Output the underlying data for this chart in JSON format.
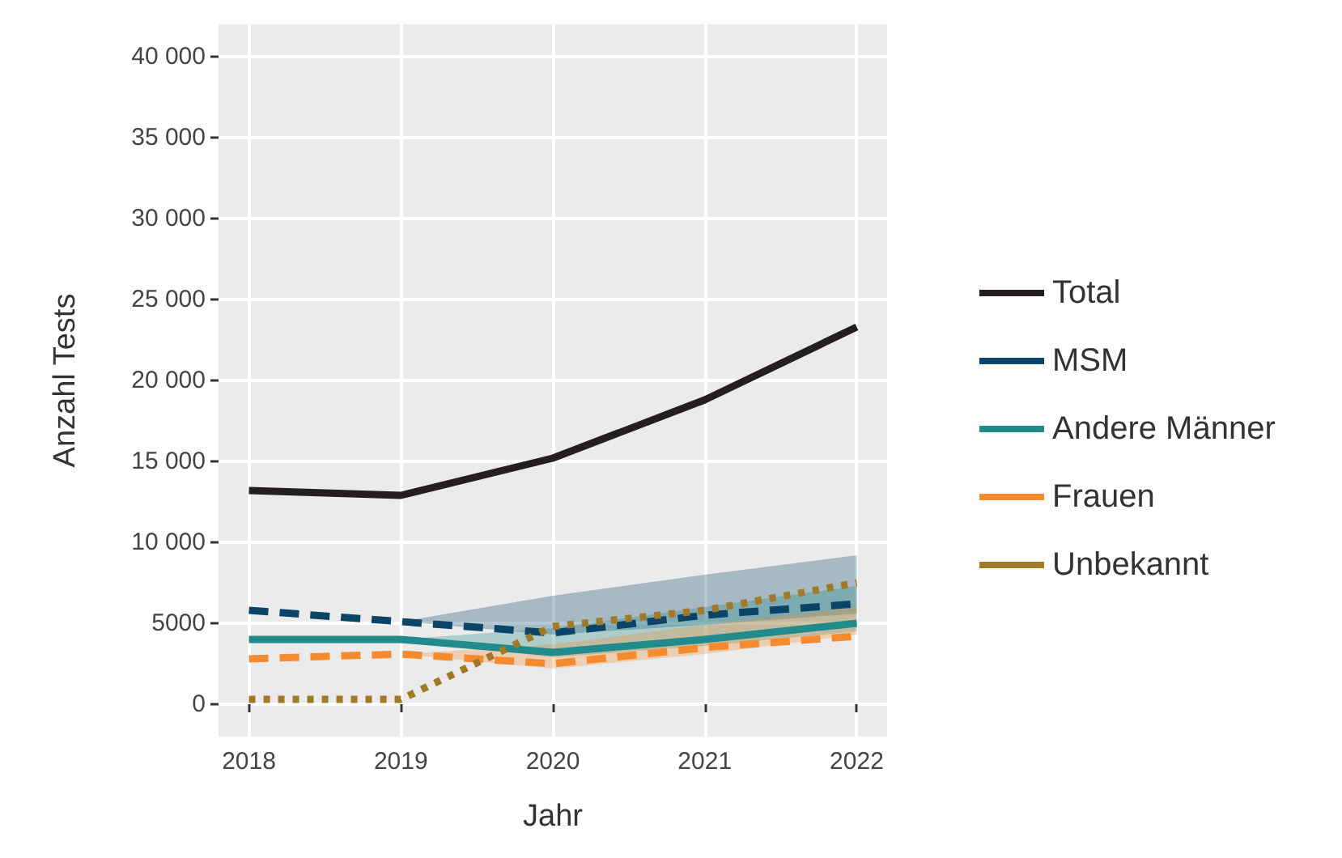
{
  "chart_data": {
    "type": "line",
    "xlabel": "Jahr",
    "ylabel": "Anzahl Tests",
    "x": [
      2018,
      2019,
      2020,
      2021,
      2022
    ],
    "xlim": [
      2017.8,
      2022.2
    ],
    "xticks": [
      2018,
      2019,
      2020,
      2021,
      2022
    ],
    "ylim": [
      -2000,
      42000
    ],
    "yticks": [
      0,
      5000,
      {
        "value": 10000,
        "label": "10 000"
      },
      {
        "value": 15000,
        "label": "15 000"
      },
      {
        "value": 20000,
        "label": "20 000"
      },
      {
        "value": 25000,
        "label": "25 000"
      },
      {
        "value": 30000,
        "label": "30 000"
      },
      {
        "value": 35000,
        "label": "35 000"
      },
      {
        "value": 40000,
        "label": "40 000"
      }
    ],
    "grid": true,
    "legend": "right",
    "marker": "none",
    "series": [
      {
        "name": "Total",
        "color": "#231f20",
        "line_style": "solid",
        "values": [
          13200,
          12900,
          15200,
          18800,
          23300
        ]
      },
      {
        "name": "MSM",
        "color": "#0b4466",
        "line_style": "dashed",
        "values": [
          5800,
          5100,
          4400,
          5500,
          6200
        ],
        "lower": [
          null,
          5100,
          4300,
          4900,
          5600
        ],
        "upper": [
          null,
          5100,
          6700,
          8000,
          9200
        ]
      },
      {
        "name": "Andere Männer",
        "color": "#218a8a",
        "line_style": "solid",
        "values": [
          4000,
          4000,
          3200,
          4000,
          5000
        ],
        "lower": [
          null,
          4000,
          2900,
          3600,
          4500
        ],
        "upper": [
          null,
          4000,
          4700,
          6000,
          7300
        ]
      },
      {
        "name": "Frauen",
        "color": "#f58a2e",
        "line_style": "dashed",
        "values": [
          2800,
          3100,
          2500,
          3500,
          4200
        ],
        "lower": [
          null,
          3100,
          2200,
          3100,
          4300
        ],
        "upper": [
          null,
          3100,
          3700,
          4900,
          6000
        ]
      },
      {
        "name": "Unbekannt",
        "color": "#a07a26",
        "line_style": "dotted",
        "values": [
          300,
          300,
          4800,
          5800,
          7500
        ]
      }
    ]
  }
}
